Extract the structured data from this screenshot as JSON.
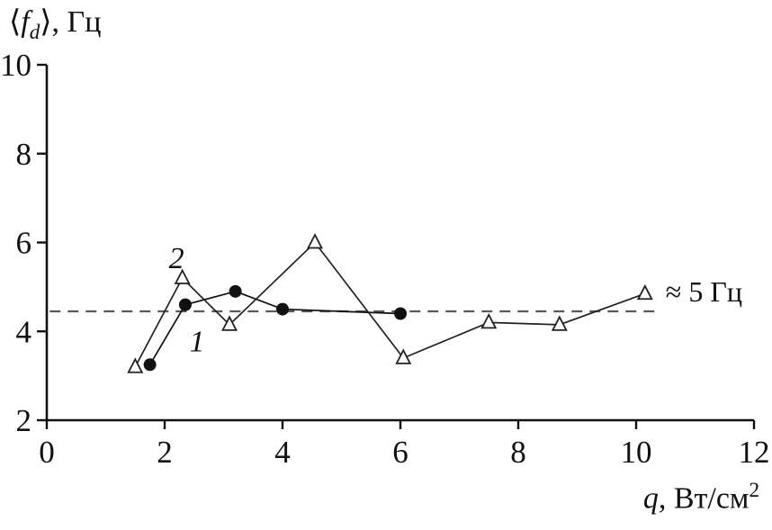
{
  "page": {
    "background": "#ffffff"
  },
  "labels": {
    "y_pre": "⟨",
    "y_var": "f",
    "y_sub": "d",
    "y_post": "⟩, Гц",
    "x_var": "q",
    "x_post": ", Вт/см",
    "x_sup": "2"
  },
  "chart_data": {
    "type": "line",
    "title": "",
    "ylabel": "⟨f_d⟩, Гц",
    "xlabel": "q, Вт/см²",
    "xlim": [
      0,
      12
    ],
    "ylim": [
      2,
      10
    ],
    "xticks": [
      0,
      2,
      4,
      6,
      8,
      10,
      12
    ],
    "yticks": [
      2,
      4,
      6,
      8,
      10
    ],
    "grid": false,
    "axis_color": "#111111",
    "series": [
      {
        "name": "1",
        "marker": "filled-circle",
        "color": "#111111",
        "points": [
          [
            1.75,
            3.25
          ],
          [
            2.35,
            4.6
          ],
          [
            3.2,
            4.9
          ],
          [
            4.0,
            4.5
          ],
          [
            6.0,
            4.4
          ]
        ]
      },
      {
        "name": "2",
        "marker": "open-triangle",
        "color": "#222222",
        "points": [
          [
            1.5,
            3.2
          ],
          [
            2.3,
            5.2
          ],
          [
            3.1,
            4.15
          ],
          [
            4.55,
            6.0
          ],
          [
            6.05,
            3.4
          ],
          [
            7.5,
            4.2
          ],
          [
            8.7,
            4.15
          ],
          [
            10.15,
            4.85
          ]
        ]
      }
    ],
    "reference_line": {
      "y": 4.45,
      "x_start": 0.05,
      "x_end": 10.4,
      "style": "dashed",
      "color": "#5a5a5a"
    },
    "annotations": [
      {
        "name": "curve-label-2",
        "text": "2",
        "x": 2.2,
        "y": 5.42,
        "style": "italic",
        "anchor": "middle"
      },
      {
        "name": "curve-label-1",
        "text": "1",
        "x": 2.55,
        "y": 3.55,
        "style": "italic",
        "anchor": "middle"
      },
      {
        "name": "ref-line-label",
        "text": "≈ 5 Гц",
        "x": 10.5,
        "y": 4.67,
        "style": "normal",
        "anchor": "start"
      }
    ]
  }
}
